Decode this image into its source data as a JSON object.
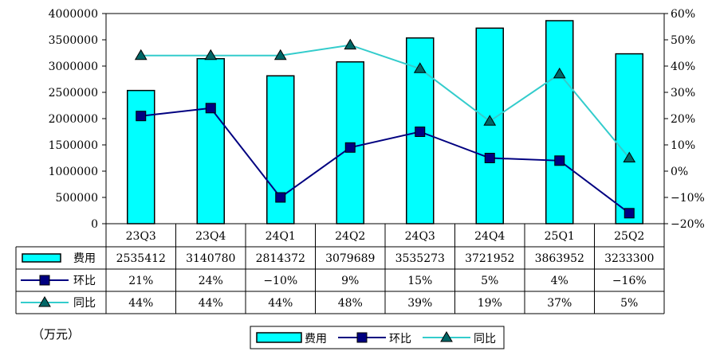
{
  "chart_data": {
    "type": "bar",
    "categories": [
      "23Q3",
      "23Q4",
      "24Q1",
      "24Q2",
      "24Q3",
      "24Q4",
      "25Q1",
      "25Q2"
    ],
    "y_left": {
      "ylim": [
        0,
        4000000
      ],
      "ticks": [
        "0",
        "500000",
        "1000000",
        "1500000",
        "2000000",
        "2500000",
        "3000000",
        "3500000",
        "4000000"
      ]
    },
    "y_right": {
      "ylim": [
        -20,
        60
      ],
      "ticks": [
        "-20%",
        "-10%",
        "0%",
        "10%",
        "20%",
        "30%",
        "40%",
        "50%",
        "60%"
      ]
    },
    "series": [
      {
        "name": "费用",
        "kind": "bar",
        "axis": "left",
        "color": "#00ffff",
        "values": [
          2535412,
          3140780,
          2814372,
          3079689,
          3535273,
          3721952,
          3863952,
          3233300
        ],
        "labels": [
          "2535412",
          "3140780",
          "2814372",
          "3079689",
          "3535273",
          "3721952",
          "3863952",
          "3233300"
        ]
      },
      {
        "name": "环比",
        "kind": "line",
        "marker": "square",
        "axis": "right",
        "color": "#000080",
        "values": [
          21,
          24,
          -10,
          9,
          15,
          5,
          4,
          -16
        ],
        "labels": [
          "21%",
          "24%",
          "-10%",
          "9%",
          "15%",
          "5%",
          "4%",
          "-16%"
        ]
      },
      {
        "name": "同比",
        "kind": "line",
        "marker": "triangle",
        "axis": "right",
        "color": "#33cccc",
        "values": [
          44,
          44,
          44,
          48,
          39,
          19,
          37,
          5
        ],
        "labels": [
          "44%",
          "44%",
          "44%",
          "48%",
          "39%",
          "19%",
          "37%",
          "5%"
        ]
      }
    ],
    "unit_label": "（万元）",
    "legend_position": "bottom",
    "grid": false
  }
}
